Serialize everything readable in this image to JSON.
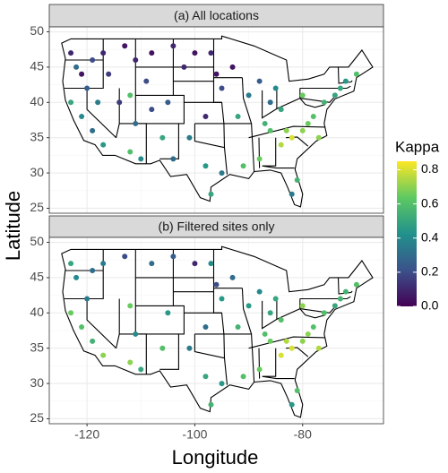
{
  "chart_data": {
    "type": "scatter",
    "xlabel": "Longitude",
    "ylabel": "Latitude",
    "xlim": [
      -127,
      -65
    ],
    "ylim": [
      24.3,
      50.7
    ],
    "xticks": [
      -120,
      -100,
      -80
    ],
    "yticks": [
      25,
      30,
      35,
      40,
      45,
      50
    ],
    "grid": true,
    "colorbar": {
      "title": "Kappa",
      "lim": [
        0,
        0.85
      ],
      "ticks": [
        {
          "value": 0,
          "label": "0.0"
        },
        0.2,
        0.4,
        0.6,
        0.8
      ]
    },
    "panels": [
      {
        "title": "(a) All locations",
        "x": [
          -123,
          -122,
          -121,
          -119,
          -117,
          -116,
          -113,
          -111,
          -108,
          -104,
          -100,
          -97,
          -123,
          -121,
          -119,
          -117,
          -114,
          -112,
          -111,
          -108,
          -105,
          -106,
          -112,
          -110,
          -104,
          -101,
          -98,
          -95,
          -93,
          -98,
          -95,
          -97,
          -92,
          -90,
          -88,
          -85,
          -84,
          -86,
          -84,
          -82,
          -80,
          -78,
          -76,
          -74,
          -72,
          -70,
          -81,
          -82,
          -88,
          -91,
          -80,
          -77,
          -86,
          -96,
          -102,
          -109,
          -120,
          -118,
          -87,
          -83,
          -79,
          -73
        ],
        "y": [
          47,
          45,
          44,
          46,
          47,
          44,
          48,
          46,
          47,
          48,
          47,
          47,
          40,
          38,
          36,
          34,
          40,
          41,
          37,
          39,
          40,
          35,
          33,
          32,
          32,
          35,
          38,
          42,
          45,
          31,
          30,
          27,
          38,
          41,
          43,
          42,
          39,
          36,
          34,
          35,
          36,
          38,
          40,
          41,
          43,
          44,
          29,
          27,
          32,
          31,
          41,
          35,
          40,
          44,
          45,
          43,
          42,
          40,
          37,
          36,
          37,
          42
        ],
        "values": [
          0.1,
          0.3,
          0.05,
          0.2,
          0.1,
          0.15,
          0.05,
          0.1,
          0.05,
          0.1,
          0.05,
          0.1,
          0.5,
          0.4,
          0.3,
          0.45,
          0.15,
          0.6,
          0.3,
          0.2,
          0.25,
          0.5,
          0.6,
          0.4,
          0.3,
          0.35,
          0.1,
          0.2,
          0.05,
          0.45,
          0.35,
          0.5,
          0.5,
          0.35,
          0.25,
          0.4,
          0.5,
          0.6,
          0.75,
          0.8,
          0.7,
          0.6,
          0.55,
          0.5,
          0.45,
          0.6,
          0.55,
          0.35,
          0.65,
          0.6,
          0.65,
          0.7,
          0.3,
          0.05,
          0.1,
          0.2,
          0.25,
          0.35,
          0.55,
          0.7,
          0.65,
          0.5
        ]
      },
      {
        "title": "(b) Filtered sites only",
        "x": [
          -123,
          -122,
          -119,
          -117,
          -113,
          -108,
          -104,
          -100,
          -97,
          -123,
          -121,
          -119,
          -117,
          -112,
          -111,
          -105,
          -106,
          -112,
          -110,
          -101,
          -98,
          -95,
          -93,
          -98,
          -95,
          -97,
          -92,
          -90,
          -88,
          -85,
          -84,
          -86,
          -84,
          -82,
          -80,
          -78,
          -76,
          -74,
          -72,
          -70,
          -81,
          -82,
          -88,
          -91,
          -80,
          -77,
          -86,
          -96,
          -120,
          -87,
          -83,
          -79,
          -73
        ],
        "y": [
          47,
          45,
          46,
          47,
          48,
          47,
          48,
          47,
          47,
          40,
          38,
          36,
          34,
          41,
          37,
          40,
          35,
          33,
          32,
          35,
          38,
          42,
          45,
          31,
          30,
          27,
          38,
          41,
          43,
          42,
          39,
          36,
          34,
          35,
          36,
          38,
          40,
          41,
          43,
          44,
          29,
          27,
          32,
          31,
          41,
          35,
          40,
          44,
          42,
          37,
          36,
          37,
          42
        ],
        "values": [
          0.5,
          0.4,
          0.3,
          0.35,
          0.2,
          0.3,
          0.25,
          0.1,
          0.4,
          0.65,
          0.6,
          0.55,
          0.7,
          0.65,
          0.4,
          0.45,
          0.6,
          0.7,
          0.5,
          0.35,
          0.3,
          0.45,
          0.3,
          0.5,
          0.45,
          0.55,
          0.55,
          0.45,
          0.4,
          0.5,
          0.6,
          0.65,
          0.8,
          0.8,
          0.7,
          0.6,
          0.6,
          0.5,
          0.55,
          0.6,
          0.6,
          0.45,
          0.65,
          0.6,
          0.7,
          0.75,
          0.5,
          0.2,
          0.35,
          0.6,
          0.75,
          0.7,
          0.55
        ]
      }
    ]
  }
}
